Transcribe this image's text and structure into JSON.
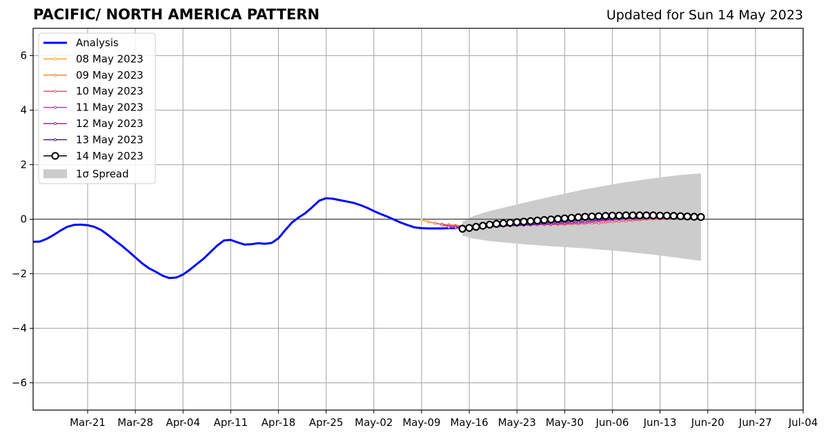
{
  "chart_data": {
    "type": "line",
    "title": "PACIFIC/ NORTH AMERICA PATTERN",
    "subtitle": "Updated for Sun 14 May 2023",
    "xlabel": "",
    "ylabel": "",
    "ylim": [
      -7,
      7
    ],
    "xlim": [
      "2023-03-13",
      "2023-07-04"
    ],
    "yticks": [
      -6,
      -4,
      -2,
      0,
      2,
      4,
      6
    ],
    "ytick_labels": [
      "−6",
      "−4",
      "−2",
      "0",
      "2",
      "4",
      "6"
    ],
    "xticks": [
      "2023-03-21",
      "2023-03-28",
      "2023-04-04",
      "2023-04-11",
      "2023-04-18",
      "2023-04-25",
      "2023-05-02",
      "2023-05-09",
      "2023-05-16",
      "2023-05-23",
      "2023-05-30",
      "2023-06-06",
      "2023-06-13",
      "2023-06-20",
      "2023-06-27",
      "2023-07-04"
    ],
    "xtick_labels": [
      "Mar-21",
      "Mar-28",
      "Apr-04",
      "Apr-11",
      "Apr-18",
      "Apr-25",
      "May-02",
      "May-09",
      "May-16",
      "May-23",
      "May-30",
      "Jun-06",
      "Jun-13",
      "Jun-20",
      "Jun-27",
      "Jul-04"
    ],
    "grid": true,
    "legend_position": "top-left",
    "analysis": {
      "name": "Analysis",
      "color": "#0000ff",
      "x": [
        "2023-03-13",
        "2023-03-14",
        "2023-03-15",
        "2023-03-16",
        "2023-03-17",
        "2023-03-18",
        "2023-03-19",
        "2023-03-20",
        "2023-03-21",
        "2023-03-22",
        "2023-03-23",
        "2023-03-24",
        "2023-03-25",
        "2023-03-26",
        "2023-03-27",
        "2023-03-28",
        "2023-03-29",
        "2023-03-30",
        "2023-03-31",
        "2023-04-01",
        "2023-04-02",
        "2023-04-03",
        "2023-04-04",
        "2023-04-05",
        "2023-04-06",
        "2023-04-07",
        "2023-04-08",
        "2023-04-09",
        "2023-04-10",
        "2023-04-11",
        "2023-04-12",
        "2023-04-13",
        "2023-04-14",
        "2023-04-15",
        "2023-04-16",
        "2023-04-17",
        "2023-04-18",
        "2023-04-19",
        "2023-04-20",
        "2023-04-21",
        "2023-04-22",
        "2023-04-23",
        "2023-04-24",
        "2023-04-25",
        "2023-04-26",
        "2023-04-27",
        "2023-04-28",
        "2023-04-29",
        "2023-04-30",
        "2023-05-01",
        "2023-05-02",
        "2023-05-03",
        "2023-05-04",
        "2023-05-05",
        "2023-05-06",
        "2023-05-07",
        "2023-05-08",
        "2023-05-09",
        "2023-05-10",
        "2023-05-11",
        "2023-05-12",
        "2023-05-13",
        "2023-05-14"
      ],
      "y": [
        -0.83,
        -0.82,
        -0.72,
        -0.58,
        -0.42,
        -0.28,
        -0.21,
        -0.2,
        -0.22,
        -0.28,
        -0.4,
        -0.58,
        -0.78,
        -0.97,
        -1.18,
        -1.4,
        -1.62,
        -1.8,
        -1.93,
        -2.07,
        -2.16,
        -2.14,
        -2.03,
        -1.85,
        -1.65,
        -1.45,
        -1.21,
        -0.97,
        -0.78,
        -0.76,
        -0.85,
        -0.93,
        -0.92,
        -0.88,
        -0.9,
        -0.87,
        -0.7,
        -0.4,
        -0.12,
        0.07,
        0.23,
        0.45,
        0.68,
        0.77,
        0.75,
        0.7,
        0.65,
        0.6,
        0.52,
        0.42,
        0.3,
        0.19,
        0.09,
        -0.02,
        -0.13,
        -0.22,
        -0.3,
        -0.33,
        -0.34,
        -0.34,
        -0.34,
        -0.33,
        -0.33
      ]
    },
    "forecasts": [
      {
        "name": "08 May 2023",
        "color": "#f5a623",
        "start": "2023-05-09",
        "y": [
          -0.02,
          -0.09,
          -0.15,
          -0.18,
          -0.2,
          -0.22
        ]
      },
      {
        "name": "09 May 2023",
        "color": "#f08a3c",
        "start": "2023-05-10",
        "y": [
          -0.1,
          -0.15,
          -0.19,
          -0.21,
          -0.23,
          -0.24
        ]
      },
      {
        "name": "10 May 2023",
        "color": "#e05a6e",
        "start": "2023-05-11",
        "y": [
          -0.15,
          -0.2,
          -0.22,
          -0.24,
          -0.25,
          -0.26,
          -0.25,
          -0.24,
          -0.24,
          -0.23,
          -0.22,
          -0.22,
          -0.21,
          -0.21,
          -0.21,
          -0.2,
          -0.2,
          -0.2,
          -0.19,
          -0.19,
          -0.18,
          -0.17,
          -0.16,
          -0.15,
          -0.14,
          -0.12,
          -0.1,
          -0.08,
          -0.07,
          -0.05,
          -0.03,
          -0.01,
          0.0,
          0.01,
          0.02,
          0.03
        ]
      },
      {
        "name": "11 May 2023",
        "color": "#c2409a",
        "start": "2023-05-12",
        "y": [
          -0.22,
          -0.26,
          -0.27,
          -0.28,
          -0.27,
          -0.26,
          -0.26,
          -0.25,
          -0.24,
          -0.24,
          -0.23,
          -0.23,
          -0.22,
          -0.21,
          -0.2,
          -0.19,
          -0.18,
          -0.17,
          -0.16,
          -0.14,
          -0.13,
          -0.11,
          -0.09,
          -0.07,
          -0.05,
          -0.03,
          -0.01,
          0.0,
          0.01,
          0.02,
          0.03,
          0.03,
          0.04,
          0.04,
          0.04
        ]
      },
      {
        "name": "12 May 2023",
        "color": "#8e2ba8",
        "start": "2023-05-13",
        "y": [
          -0.3,
          -0.31,
          -0.3,
          -0.3,
          -0.29,
          -0.28,
          -0.27,
          -0.26,
          -0.25,
          -0.24,
          -0.23,
          -0.22,
          -0.21,
          -0.2,
          -0.18,
          -0.17,
          -0.15,
          -0.13,
          -0.11,
          -0.1,
          -0.08,
          -0.06,
          -0.04,
          -0.02,
          -0.01,
          0.0,
          0.01,
          0.02,
          0.03,
          0.04,
          0.04,
          0.05,
          0.05,
          0.05
        ]
      },
      {
        "name": "13 May 2023",
        "color": "#4b1aa0",
        "start": "2023-05-14",
        "y": [
          -0.32,
          -0.33,
          -0.32,
          -0.31,
          -0.3,
          -0.28,
          -0.26,
          -0.25,
          -0.23,
          -0.21,
          -0.2,
          -0.18,
          -0.16,
          -0.14,
          -0.12,
          -0.1,
          -0.08,
          -0.06,
          -0.04,
          -0.02,
          -0.01,
          0.0,
          0.01,
          0.02,
          0.03,
          0.04,
          0.05,
          0.05,
          0.06,
          0.06,
          0.06,
          0.06,
          0.06
        ]
      },
      {
        "name": "14 May 2023",
        "color": "#000000",
        "start": "2023-05-15",
        "y": [
          -0.35,
          -0.32,
          -0.28,
          -0.24,
          -0.2,
          -0.17,
          -0.15,
          -0.13,
          -0.11,
          -0.09,
          -0.07,
          -0.05,
          -0.03,
          -0.01,
          0.01,
          0.03,
          0.05,
          0.07,
          0.09,
          0.1,
          0.11,
          0.12,
          0.13,
          0.13,
          0.14,
          0.14,
          0.14,
          0.14,
          0.14,
          0.13,
          0.13,
          0.12,
          0.11,
          0.1,
          0.09,
          0.08
        ]
      }
    ],
    "spread": {
      "name": "1σ Spread",
      "color": "#cccccc",
      "x": [
        "2023-05-15",
        "2023-05-16",
        "2023-05-17",
        "2023-05-19",
        "2023-05-21",
        "2023-05-24",
        "2023-05-28",
        "2023-06-02",
        "2023-06-07",
        "2023-06-12",
        "2023-06-16",
        "2023-06-19"
      ],
      "upper": [
        -0.1,
        0.05,
        0.15,
        0.3,
        0.42,
        0.6,
        0.83,
        1.1,
        1.32,
        1.5,
        1.62,
        1.68
      ],
      "lower": [
        -0.6,
        -0.68,
        -0.73,
        -0.8,
        -0.85,
        -0.92,
        -0.99,
        -1.07,
        -1.17,
        -1.3,
        -1.43,
        -1.53
      ]
    }
  }
}
